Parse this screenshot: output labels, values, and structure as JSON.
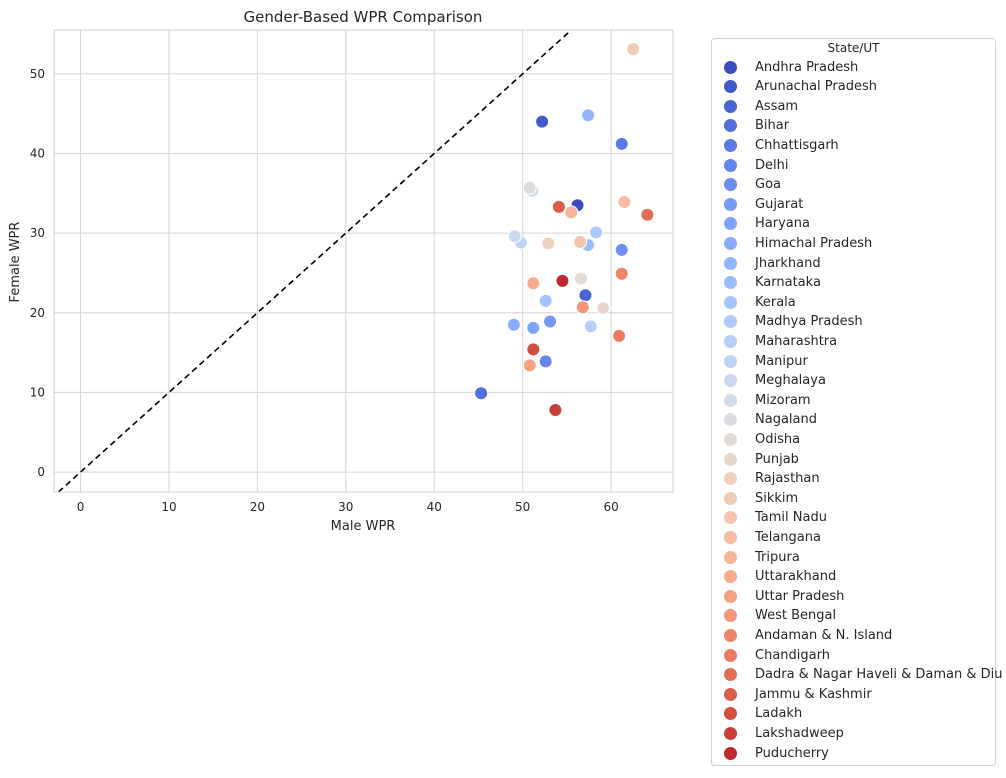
{
  "chart_data": {
    "type": "scatter",
    "title": "Gender-Based WPR Comparison",
    "xlabel": "Male WPR",
    "ylabel": "Female WPR",
    "xlim": [
      -3,
      67
    ],
    "ylim": [
      -2.5,
      55.5
    ],
    "xticks": [
      0,
      10,
      20,
      30,
      40,
      50,
      60
    ],
    "yticks": [
      0,
      10,
      20,
      30,
      40,
      50
    ],
    "grid": true,
    "reference_line": "y = x (dashed black)",
    "legend": {
      "title": "State/UT",
      "placement": "outside-right"
    },
    "series": [
      {
        "name": "Andhra Pradesh",
        "color": "#3b4cc0",
        "x": 56.2,
        "y": 33.5
      },
      {
        "name": "Arunachal Pradesh",
        "color": "#4358cb",
        "x": 52.2,
        "y": 44.0
      },
      {
        "name": "Assam",
        "color": "#4a63d3",
        "x": 57.1,
        "y": 22.2
      },
      {
        "name": "Bihar",
        "color": "#536edd",
        "x": 45.3,
        "y": 9.9
      },
      {
        "name": "Chhattisgarh",
        "color": "#5b7ae5",
        "x": 61.2,
        "y": 41.2
      },
      {
        "name": "Delhi",
        "color": "#6485ec",
        "x": 52.6,
        "y": 13.9
      },
      {
        "name": "Goa",
        "color": "#6c8ff1",
        "x": 61.2,
        "y": 27.9
      },
      {
        "name": "Gujarat",
        "color": "#7699f6",
        "x": 53.1,
        "y": 18.9
      },
      {
        "name": "Haryana",
        "color": "#7ea3f8",
        "x": 51.2,
        "y": 18.1
      },
      {
        "name": "Himachal Pradesh",
        "color": "#88abfd",
        "x": 49.0,
        "y": 18.5
      },
      {
        "name": "Jharkhand",
        "color": "#92b4fe",
        "x": 57.4,
        "y": 44.8
      },
      {
        "name": "Karnataka",
        "color": "#9bbcff",
        "x": 57.4,
        "y": 28.5
      },
      {
        "name": "Kerala",
        "color": "#a5c3fe",
        "x": 52.6,
        "y": 21.5
      },
      {
        "name": "Madhya Pradesh",
        "color": "#aec9fc",
        "x": 58.3,
        "y": 30.1
      },
      {
        "name": "Maharashtra",
        "color": "#b7cff9",
        "x": 57.7,
        "y": 18.3
      },
      {
        "name": "Manipur",
        "color": "#c0d4f5",
        "x": 49.8,
        "y": 28.8
      },
      {
        "name": "Meghalaya",
        "color": "#c9d7f0",
        "x": 49.1,
        "y": 29.6
      },
      {
        "name": "Mizoram",
        "color": "#d2dbe8",
        "x": 51.1,
        "y": 35.3
      },
      {
        "name": "Nagaland",
        "color": "#dadce0",
        "x": 50.8,
        "y": 35.7
      },
      {
        "name": "Odisha",
        "color": "#e2dad5",
        "x": 56.6,
        "y": 24.3
      },
      {
        "name": "Punjab",
        "color": "#e8d6cc",
        "x": 59.1,
        "y": 20.6
      },
      {
        "name": "Rajasthan",
        "color": "#eed0c0",
        "x": 52.9,
        "y": 28.7
      },
      {
        "name": "Sikkim",
        "color": "#f2cbb7",
        "x": 62.5,
        "y": 53.1
      },
      {
        "name": "Tamil Nadu",
        "color": "#f5c4ac",
        "x": 56.5,
        "y": 28.9
      },
      {
        "name": "Telangana",
        "color": "#f7bca1",
        "x": 61.5,
        "y": 33.9
      },
      {
        "name": "Tripura",
        "color": "#f7b497",
        "x": 55.5,
        "y": 32.6
      },
      {
        "name": "Uttarakhand",
        "color": "#f7ac8e",
        "x": 51.2,
        "y": 23.7
      },
      {
        "name": "Uttar Pradesh",
        "color": "#f5a081",
        "x": 50.8,
        "y": 13.4
      },
      {
        "name": "West Bengal",
        "color": "#f39778",
        "x": 56.8,
        "y": 20.7
      },
      {
        "name": "Andaman & N. Island",
        "color": "#ee8468",
        "x": 61.2,
        "y": 24.9
      },
      {
        "name": "Chandigarh",
        "color": "#ea7b60",
        "x": 60.9,
        "y": 17.1
      },
      {
        "name": "Dadra & Nagar Haveli & Daman & Diu",
        "color": "#e36c55",
        "x": 64.1,
        "y": 32.3
      },
      {
        "name": "Jammu & Kashmir",
        "color": "#dc5d4a",
        "x": 54.1,
        "y": 33.3
      },
      {
        "name": "Ladakh",
        "color": "#d44e41",
        "x": 51.2,
        "y": 15.4
      },
      {
        "name": "Lakshadweep",
        "color": "#cb3e38",
        "x": 53.7,
        "y": 7.8
      },
      {
        "name": "Puducherry",
        "color": "#c0282f",
        "x": 54.5,
        "y": 24.0
      }
    ]
  }
}
